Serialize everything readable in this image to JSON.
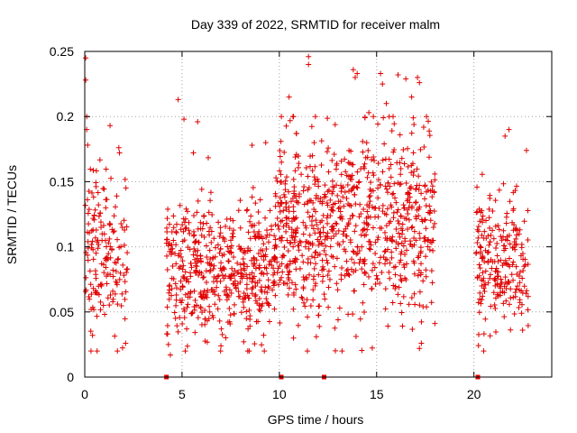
{
  "chart_data": {
    "type": "scatter",
    "title": "Day 339 of 2022, SRMTID for receiver malm",
    "xlabel": "GPS time / hours",
    "ylabel": "SRMTID / TECUs",
    "xlim": [
      0,
      24
    ],
    "ylim": [
      0,
      0.25
    ],
    "xticks": [
      0,
      5,
      10,
      15,
      20
    ],
    "xtick_labels": [
      "0",
      "5",
      "10",
      "15",
      "20"
    ],
    "yticks": [
      0,
      0.05,
      0.1,
      0.15,
      0.2,
      0.25
    ],
    "ytick_labels": [
      "0",
      "0.05",
      "0.1",
      "0.15",
      "0.2",
      "0.25"
    ],
    "grid": true,
    "marker": "+",
    "color": "#e00000",
    "series": [
      {
        "name": "SRMTID",
        "segments": [
          {
            "x_start": 0.0,
            "x_end": 2.2,
            "y_center": 0.095,
            "y_spread": 0.032,
            "count": 170
          },
          {
            "x_start": 4.2,
            "x_end": 9.8,
            "y_center": 0.082,
            "y_spread": 0.026,
            "count": 520
          },
          {
            "x_start": 9.8,
            "x_end": 12.5,
            "y_center": 0.112,
            "y_spread": 0.034,
            "count": 300
          },
          {
            "x_start": 12.5,
            "x_end": 18.0,
            "y_center": 0.118,
            "y_spread": 0.036,
            "count": 520
          },
          {
            "x_start": 20.1,
            "x_end": 22.8,
            "y_center": 0.09,
            "y_spread": 0.03,
            "count": 230
          }
        ],
        "peaks": [
          {
            "x": 0.05,
            "y": 0.245
          },
          {
            "x": 0.05,
            "y": 0.228
          },
          {
            "x": 0.1,
            "y": 0.2
          },
          {
            "x": 0.1,
            "y": 0.19
          },
          {
            "x": 1.3,
            "y": 0.193
          },
          {
            "x": 0.4,
            "y": 0.032
          },
          {
            "x": 2.1,
            "y": 0.026
          },
          {
            "x": 4.3,
            "y": 0.025
          },
          {
            "x": 4.4,
            "y": 0.017
          },
          {
            "x": 4.8,
            "y": 0.213
          },
          {
            "x": 5.1,
            "y": 0.198
          },
          {
            "x": 5.8,
            "y": 0.196
          },
          {
            "x": 7.0,
            "y": 0.024
          },
          {
            "x": 8.6,
            "y": 0.178
          },
          {
            "x": 9.3,
            "y": 0.18
          },
          {
            "x": 10.5,
            "y": 0.215
          },
          {
            "x": 10.7,
            "y": 0.2
          },
          {
            "x": 11.5,
            "y": 0.246
          },
          {
            "x": 11.5,
            "y": 0.24
          },
          {
            "x": 11.9,
            "y": 0.031
          },
          {
            "x": 13.8,
            "y": 0.236
          },
          {
            "x": 13.9,
            "y": 0.23
          },
          {
            "x": 14.0,
            "y": 0.233
          },
          {
            "x": 14.6,
            "y": 0.203
          },
          {
            "x": 15.2,
            "y": 0.233
          },
          {
            "x": 15.3,
            "y": 0.225
          },
          {
            "x": 15.5,
            "y": 0.21
          },
          {
            "x": 16.1,
            "y": 0.232
          },
          {
            "x": 16.5,
            "y": 0.229
          },
          {
            "x": 16.8,
            "y": 0.215
          },
          {
            "x": 17.1,
            "y": 0.23
          },
          {
            "x": 17.2,
            "y": 0.226
          },
          {
            "x": 17.2,
            "y": 0.022
          },
          {
            "x": 17.3,
            "y": 0.026
          },
          {
            "x": 21.6,
            "y": 0.185
          },
          {
            "x": 21.8,
            "y": 0.19
          },
          {
            "x": 22.7,
            "y": 0.174
          },
          {
            "x": 22.5,
            "y": 0.036
          }
        ],
        "zero_points": [
          {
            "x": 4.2,
            "y": 0
          },
          {
            "x": 10.1,
            "y": 0
          },
          {
            "x": 12.3,
            "y": 0
          },
          {
            "x": 20.2,
            "y": 0
          }
        ]
      }
    ]
  }
}
